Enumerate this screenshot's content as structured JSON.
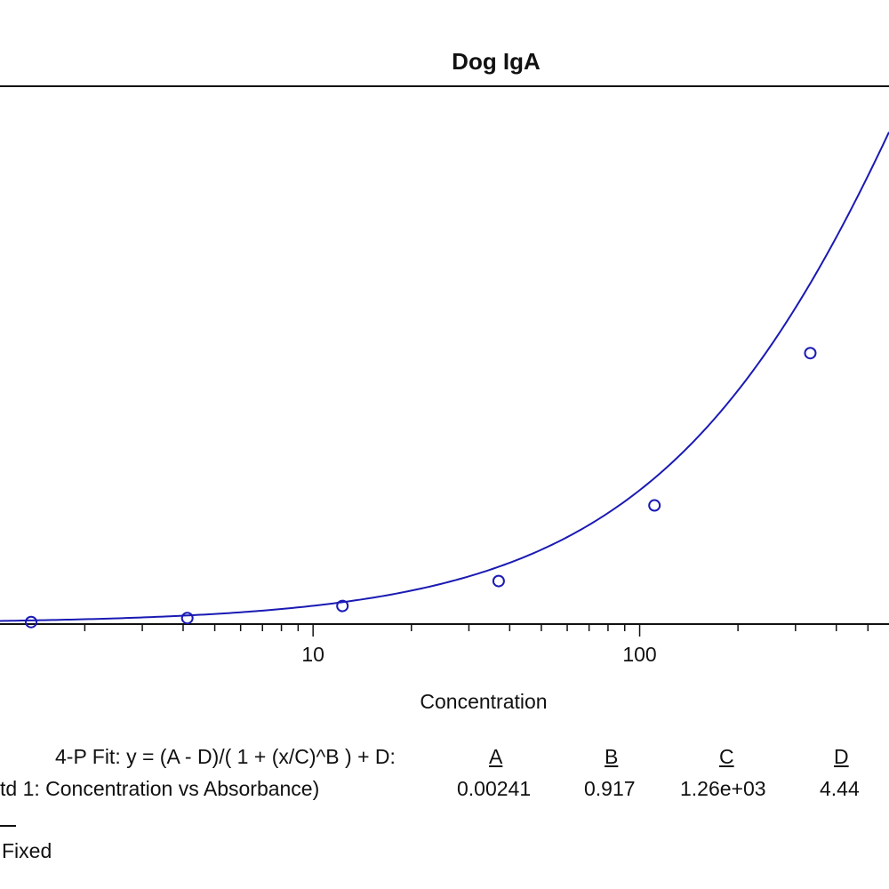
{
  "chart_data": {
    "type": "line",
    "title": "Dog IgA",
    "xlabel": "Concentration",
    "ylabel": "",
    "xscale": "log",
    "xlim": [
      1.1,
      580
    ],
    "ylim": [
      0,
      1.6
    ],
    "x_ticks": [
      10,
      100
    ],
    "x_tick_labels": [
      "10",
      "100"
    ],
    "grid": false,
    "color": "#1a1ab4",
    "series": [
      {
        "points": [
          {
            "x": 1.37,
            "y": 0.006
          },
          {
            "x": 4.12,
            "y": 0.018
          },
          {
            "x": 12.3,
            "y": 0.054
          },
          {
            "x": 37.0,
            "y": 0.128
          },
          {
            "x": 111,
            "y": 0.353
          },
          {
            "x": 333,
            "y": 0.806
          }
        ],
        "fit": {
          "A": 0.00241,
          "B": 0.917,
          "C": 1260,
          "D": 4.44
        }
      }
    ]
  },
  "fit_info": {
    "equation": "4-P Fit: y = (A - D)/( 1 + (x/C)^B ) + D:",
    "param_headers": [
      "A",
      "B",
      "C",
      "D"
    ],
    "row_label": "td 1: Concentration vs Absorbance)",
    "param_values": [
      "0.00241",
      "0.917",
      "1.26e+03",
      "4.44"
    ],
    "fixed_label": "Fixed"
  }
}
